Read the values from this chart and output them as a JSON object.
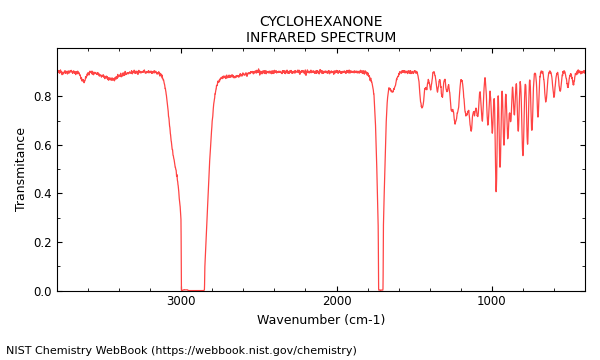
{
  "title_line1": "CYCLOHEXANONE",
  "title_line2": "INFRARED SPECTRUM",
  "xlabel": "Wavenumber (cm-1)",
  "ylabel": "Transmitance",
  "xlim": [
    3800,
    400
  ],
  "ylim": [
    0.0,
    1.0
  ],
  "line_color": "#ff4444",
  "background_color": "#ffffff",
  "plot_bg_color": "#ffffff",
  "footer_text": "NIST Chemistry WebBook (https://webbook.nist.gov/chemistry)",
  "xticks": [
    3000,
    2000,
    1000
  ],
  "yticks": [
    0.0,
    0.2,
    0.4,
    0.6,
    0.8
  ],
  "title_fontsize": 10,
  "axis_label_fontsize": 9,
  "tick_fontsize": 8.5,
  "footer_fontsize": 8
}
